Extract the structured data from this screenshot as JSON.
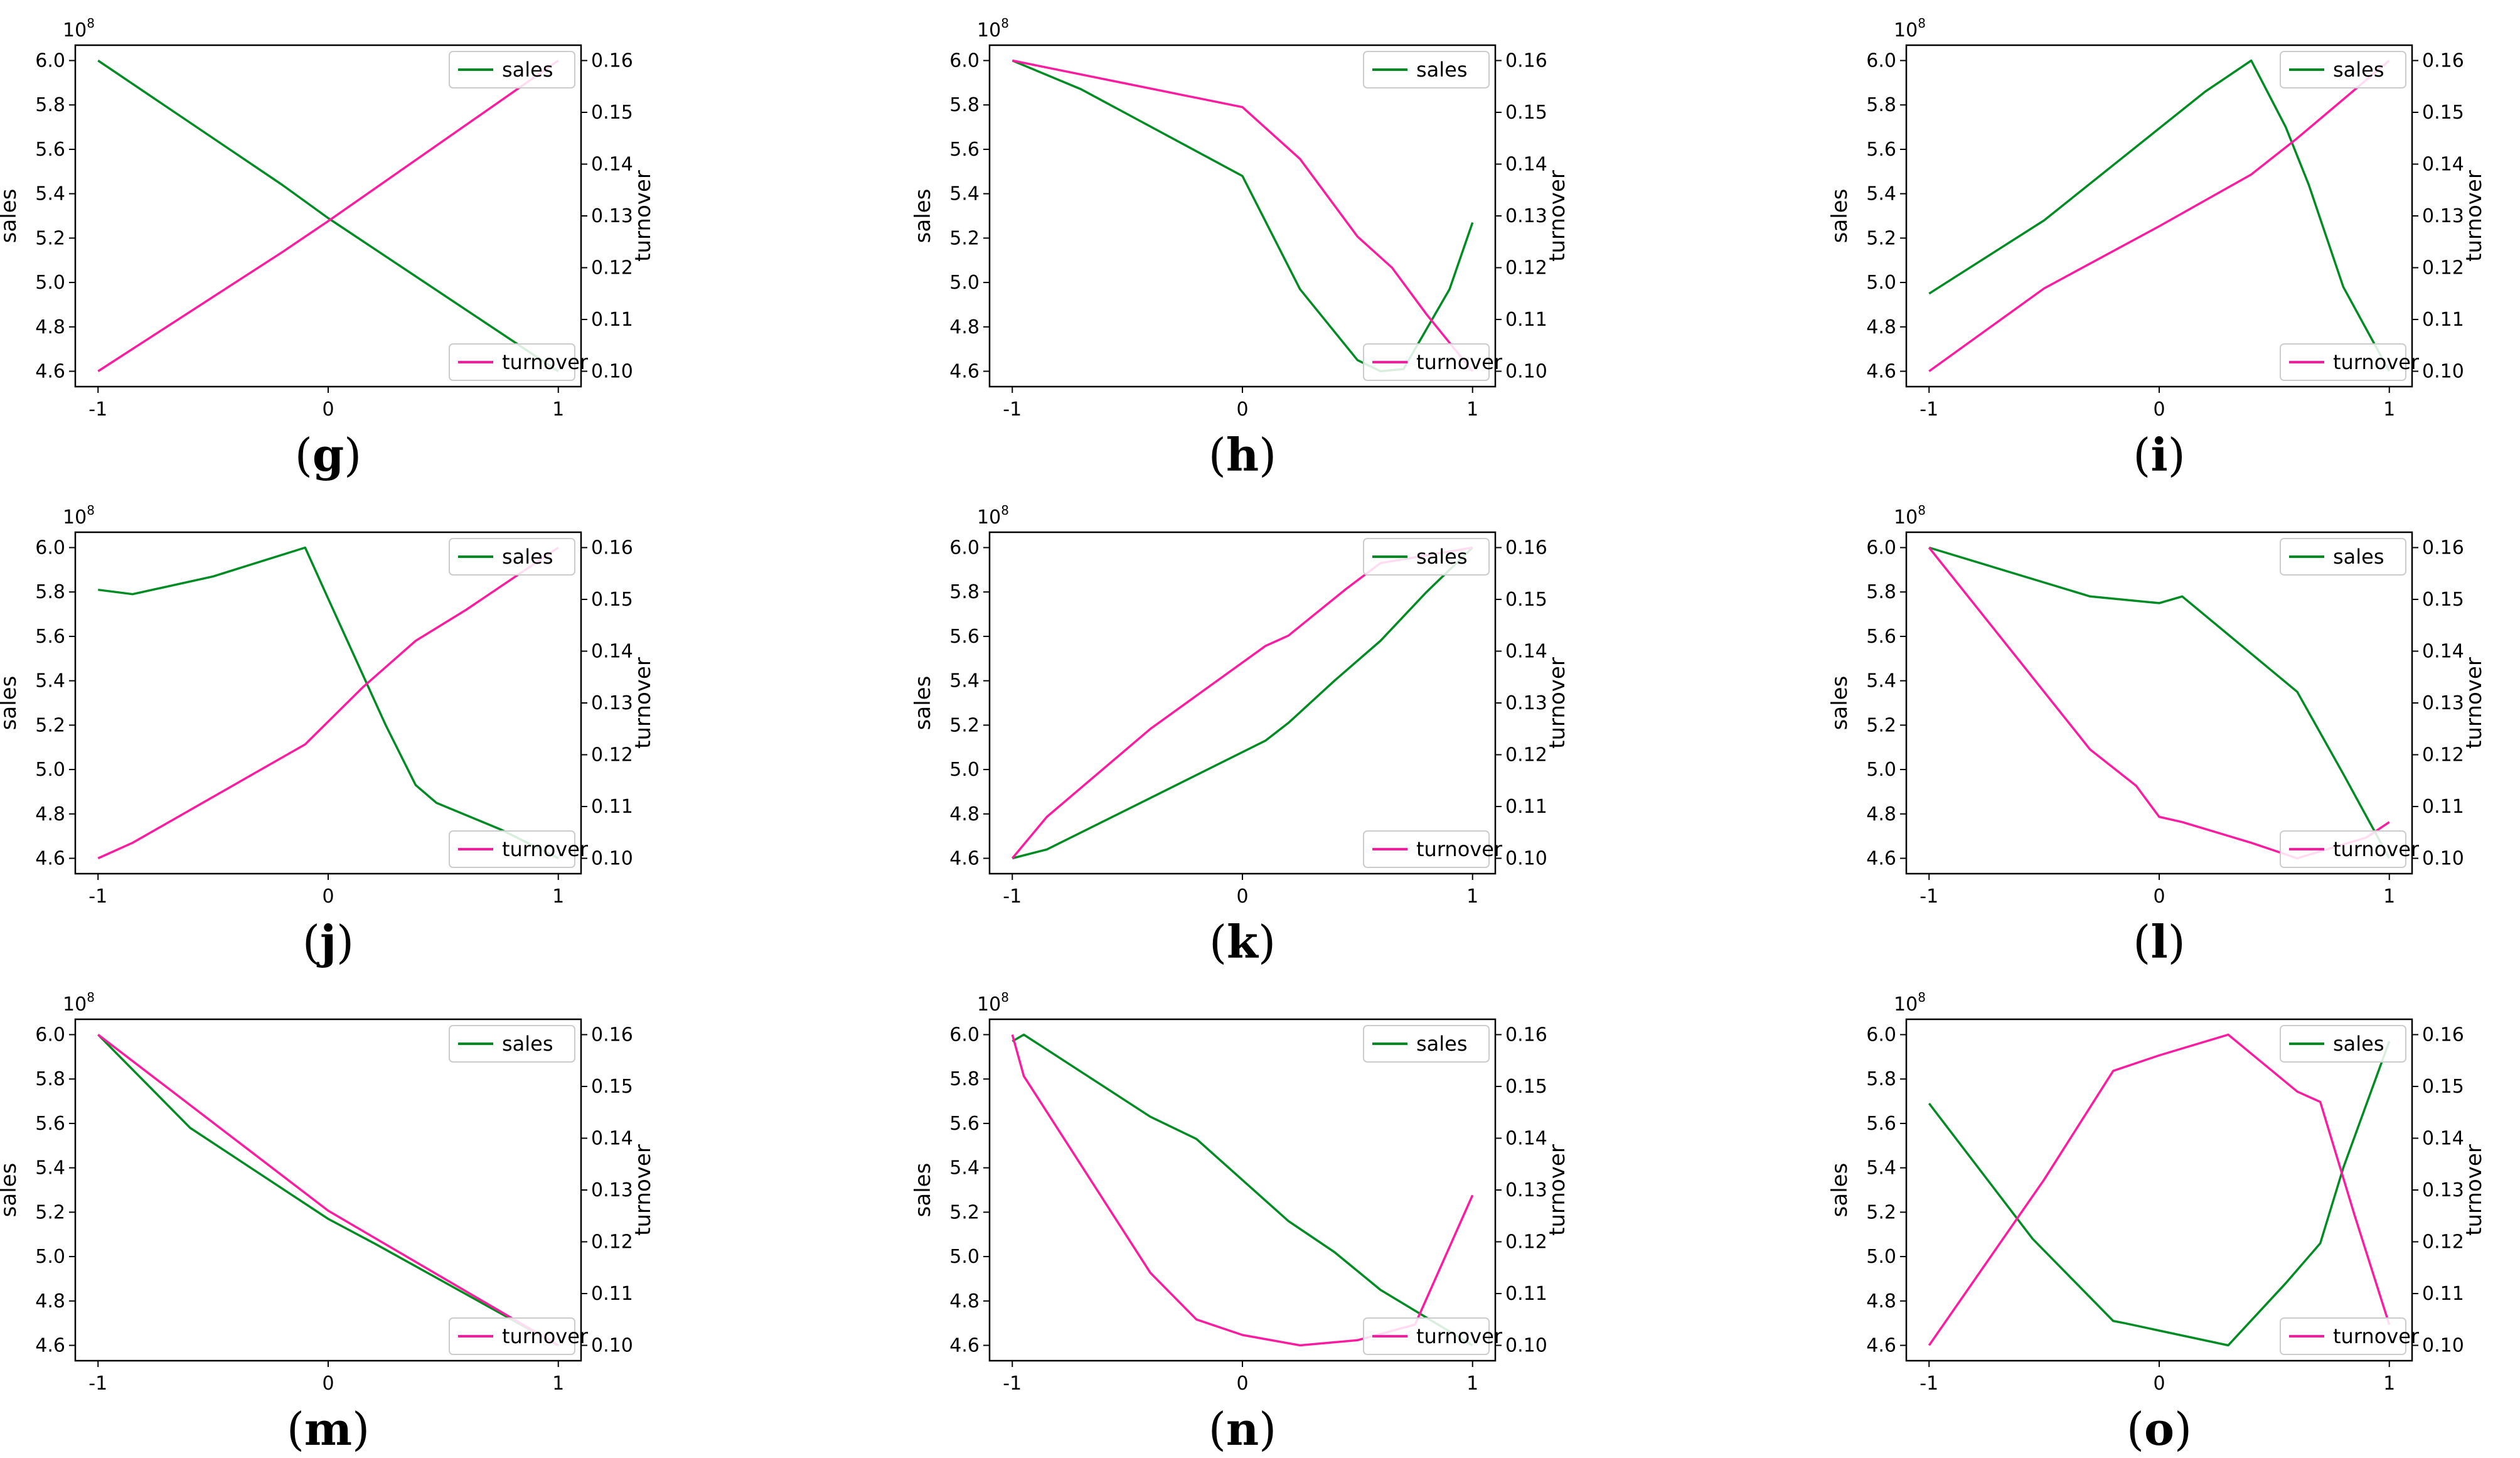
{
  "chart_data": [
    {
      "label": "g",
      "type": "line",
      "x": [
        -1,
        0,
        1
      ],
      "xticks": [
        "-1",
        "0",
        "1"
      ],
      "ylim_left": [
        4.6,
        6.0
      ],
      "ylim_right": [
        0.1,
        0.16
      ],
      "yticks_left": [
        "4.6",
        "4.8",
        "5.0",
        "5.2",
        "5.4",
        "5.6",
        "5.8",
        "6.0"
      ],
      "yticks_right": [
        "0.10",
        "0.11",
        "0.12",
        "0.13",
        "0.14",
        "0.15",
        "0.16"
      ],
      "ylabel_left": "sales",
      "ylabel_right": "turnover",
      "exponent": "10^8",
      "legend": {
        "sales": "upper right",
        "turnover": "lower right"
      },
      "series": [
        {
          "name": "sales",
          "axis": "left",
          "color": "#008c23",
          "points": [
            [
              -1,
              6.0
            ],
            [
              -0.2,
              5.44
            ],
            [
              0,
              5.29
            ],
            [
              1,
              4.6
            ]
          ]
        },
        {
          "name": "turnover",
          "axis": "right",
          "color": "#ff1aa0",
          "points": [
            [
              -1,
              0.1
            ],
            [
              -0.2,
              0.123
            ],
            [
              0,
              0.129
            ],
            [
              1,
              0.16
            ]
          ]
        }
      ]
    },
    {
      "label": "h",
      "type": "line",
      "x": [
        -1,
        0,
        1
      ],
      "xticks": [
        "-1",
        "0",
        "1"
      ],
      "ylim_left": [
        4.6,
        6.0
      ],
      "ylim_right": [
        0.1,
        0.16
      ],
      "yticks_left": [
        "4.6",
        "4.8",
        "5.0",
        "5.2",
        "5.4",
        "5.6",
        "5.8",
        "6.0"
      ],
      "yticks_right": [
        "0.10",
        "0.11",
        "0.12",
        "0.13",
        "0.14",
        "0.15",
        "0.16"
      ],
      "ylabel_left": "sales",
      "ylabel_right": "turnover",
      "exponent": "10^8",
      "legend": {
        "sales": "upper right",
        "turnover": "lower right"
      },
      "series": [
        {
          "name": "sales",
          "axis": "left",
          "color": "#008c23",
          "points": [
            [
              -1,
              6.0
            ],
            [
              -0.7,
              5.87
            ],
            [
              0,
              5.48
            ],
            [
              0.25,
              4.97
            ],
            [
              0.5,
              4.65
            ],
            [
              0.6,
              4.6
            ],
            [
              0.7,
              4.61
            ],
            [
              0.9,
              4.97
            ],
            [
              1,
              5.27
            ]
          ]
        },
        {
          "name": "turnover",
          "axis": "right",
          "color": "#ff1aa0",
          "points": [
            [
              -1,
              0.16
            ],
            [
              0,
              0.151
            ],
            [
              0.25,
              0.141
            ],
            [
              0.5,
              0.126
            ],
            [
              0.65,
              0.12
            ],
            [
              0.8,
              0.111
            ],
            [
              1,
              0.1
            ]
          ]
        }
      ]
    },
    {
      "label": "i",
      "type": "line",
      "x": [
        -1,
        0,
        1
      ],
      "xticks": [
        "-1",
        "0",
        "1"
      ],
      "ylim_left": [
        4.6,
        6.0
      ],
      "ylim_right": [
        0.1,
        0.16
      ],
      "yticks_left": [
        "4.6",
        "4.8",
        "5.0",
        "5.2",
        "5.4",
        "5.6",
        "5.8",
        "6.0"
      ],
      "yticks_right": [
        "0.10",
        "0.11",
        "0.12",
        "0.13",
        "0.14",
        "0.15",
        "0.16"
      ],
      "ylabel_left": "sales",
      "ylabel_right": "turnover",
      "exponent": "10^8",
      "legend": {
        "sales": "upper right",
        "turnover": "lower right"
      },
      "series": [
        {
          "name": "sales",
          "axis": "left",
          "color": "#008c23",
          "points": [
            [
              -1,
              4.95
            ],
            [
              -0.5,
              5.28
            ],
            [
              0.2,
              5.86
            ],
            [
              0.4,
              6.0
            ],
            [
              0.55,
              5.7
            ],
            [
              0.65,
              5.44
            ],
            [
              0.8,
              4.98
            ],
            [
              1,
              4.6
            ]
          ]
        },
        {
          "name": "turnover",
          "axis": "right",
          "color": "#ff1aa0",
          "points": [
            [
              -1,
              0.1
            ],
            [
              -0.5,
              0.116
            ],
            [
              0,
              0.128
            ],
            [
              0.4,
              0.138
            ],
            [
              0.6,
              0.145
            ],
            [
              1,
              0.16
            ]
          ]
        }
      ]
    },
    {
      "label": "j",
      "type": "line",
      "x": [
        -1,
        0,
        1
      ],
      "xticks": [
        "-1",
        "0",
        "1"
      ],
      "ylim_left": [
        4.6,
        6.0
      ],
      "ylim_right": [
        0.1,
        0.16
      ],
      "yticks_left": [
        "4.6",
        "4.8",
        "5.0",
        "5.2",
        "5.4",
        "5.6",
        "5.8",
        "6.0"
      ],
      "yticks_right": [
        "0.10",
        "0.11",
        "0.12",
        "0.13",
        "0.14",
        "0.15",
        "0.16"
      ],
      "ylabel_left": "sales",
      "ylabel_right": "turnover",
      "exponent": "10^8",
      "legend": {
        "sales": "upper right",
        "turnover": "lower right"
      },
      "series": [
        {
          "name": "sales",
          "axis": "left",
          "color": "#008c23",
          "points": [
            [
              -1,
              5.81
            ],
            [
              -0.85,
              5.79
            ],
            [
              -0.5,
              5.87
            ],
            [
              -0.1,
              6.0
            ],
            [
              0,
              5.77
            ],
            [
              0.25,
              5.2
            ],
            [
              0.38,
              4.93
            ],
            [
              0.47,
              4.85
            ],
            [
              0.75,
              4.73
            ],
            [
              1,
              4.6
            ]
          ]
        },
        {
          "name": "turnover",
          "axis": "right",
          "color": "#ff1aa0",
          "points": [
            [
              -1,
              0.1
            ],
            [
              -0.85,
              0.103
            ],
            [
              -0.1,
              0.122
            ],
            [
              0.15,
              0.133
            ],
            [
              0.38,
              0.142
            ],
            [
              0.6,
              0.148
            ],
            [
              1,
              0.16
            ]
          ]
        }
      ]
    },
    {
      "label": "k",
      "type": "line",
      "x": [
        -1,
        0,
        1
      ],
      "xticks": [
        "-1",
        "0",
        "1"
      ],
      "ylim_left": [
        4.6,
        6.0
      ],
      "ylim_right": [
        0.1,
        0.16
      ],
      "yticks_left": [
        "4.6",
        "4.8",
        "5.0",
        "5.2",
        "5.4",
        "5.6",
        "5.8",
        "6.0"
      ],
      "yticks_right": [
        "0.10",
        "0.11",
        "0.12",
        "0.13",
        "0.14",
        "0.15",
        "0.16"
      ],
      "ylabel_left": "sales",
      "ylabel_right": "turnover",
      "exponent": "10^8",
      "legend": {
        "sales": "upper right",
        "turnover": "lower right"
      },
      "series": [
        {
          "name": "sales",
          "axis": "left",
          "color": "#008c23",
          "points": [
            [
              -1,
              4.6
            ],
            [
              -0.85,
              4.64
            ],
            [
              -0.5,
              4.82
            ],
            [
              0.1,
              5.13
            ],
            [
              0.2,
              5.21
            ],
            [
              0.4,
              5.4
            ],
            [
              0.6,
              5.58
            ],
            [
              0.8,
              5.8
            ],
            [
              1,
              6.0
            ]
          ]
        },
        {
          "name": "turnover",
          "axis": "right",
          "color": "#ff1aa0",
          "points": [
            [
              -1,
              0.1
            ],
            [
              -0.85,
              0.108
            ],
            [
              -0.4,
              0.125
            ],
            [
              0.1,
              0.141
            ],
            [
              0.2,
              0.143
            ],
            [
              0.45,
              0.152
            ],
            [
              0.6,
              0.157
            ],
            [
              1,
              0.16
            ]
          ]
        }
      ]
    },
    {
      "label": "l",
      "type": "line",
      "x": [
        -1,
        0,
        1
      ],
      "xticks": [
        "-1",
        "0",
        "1"
      ],
      "ylim_left": [
        4.6,
        6.0
      ],
      "ylim_right": [
        0.1,
        0.16
      ],
      "yticks_left": [
        "4.6",
        "4.8",
        "5.0",
        "5.2",
        "5.4",
        "5.6",
        "5.8",
        "6.0"
      ],
      "yticks_right": [
        "0.10",
        "0.11",
        "0.12",
        "0.13",
        "0.14",
        "0.15",
        "0.16"
      ],
      "ylabel_left": "sales",
      "ylabel_right": "turnover",
      "exponent": "10^8",
      "legend": {
        "sales": "upper right",
        "turnover": "lower right"
      },
      "series": [
        {
          "name": "sales",
          "axis": "left",
          "color": "#008c23",
          "points": [
            [
              -1,
              6.0
            ],
            [
              -0.3,
              5.78
            ],
            [
              0,
              5.75
            ],
            [
              0.1,
              5.78
            ],
            [
              0.6,
              5.35
            ],
            [
              0.8,
              4.98
            ],
            [
              1,
              4.6
            ]
          ]
        },
        {
          "name": "turnover",
          "axis": "right",
          "color": "#ff1aa0",
          "points": [
            [
              -1,
              0.16
            ],
            [
              -0.3,
              0.121
            ],
            [
              -0.1,
              0.114
            ],
            [
              0,
              0.108
            ],
            [
              0.1,
              0.107
            ],
            [
              0.4,
              0.103
            ],
            [
              0.6,
              0.1
            ],
            [
              0.75,
              0.102
            ],
            [
              0.9,
              0.104
            ],
            [
              1,
              0.107
            ]
          ]
        }
      ]
    },
    {
      "label": "m",
      "type": "line",
      "x": [
        -1,
        0,
        1
      ],
      "xticks": [
        "-1",
        "0",
        "1"
      ],
      "ylim_left": [
        4.6,
        6.0
      ],
      "ylim_right": [
        0.1,
        0.16
      ],
      "yticks_left": [
        "4.6",
        "4.8",
        "5.0",
        "5.2",
        "5.4",
        "5.6",
        "5.8",
        "6.0"
      ],
      "yticks_right": [
        "0.10",
        "0.11",
        "0.12",
        "0.13",
        "0.14",
        "0.15",
        "0.16"
      ],
      "ylabel_left": "sales",
      "ylabel_right": "turnover",
      "exponent": "10^8",
      "legend": {
        "sales": "upper right",
        "turnover": "lower right"
      },
      "series": [
        {
          "name": "sales",
          "axis": "left",
          "color": "#008c23",
          "points": [
            [
              -1,
              6.0
            ],
            [
              -0.6,
              5.58
            ],
            [
              0,
              5.17
            ],
            [
              0.2,
              5.06
            ],
            [
              1,
              4.6
            ]
          ]
        },
        {
          "name": "turnover",
          "axis": "right",
          "color": "#ff1aa0",
          "points": [
            [
              -1,
              0.16
            ],
            [
              0,
              0.126
            ],
            [
              1,
              0.1
            ]
          ]
        }
      ]
    },
    {
      "label": "n",
      "type": "line",
      "x": [
        -1,
        0,
        1
      ],
      "xticks": [
        "-1",
        "0",
        "1"
      ],
      "ylim_left": [
        4.6,
        6.0
      ],
      "ylim_right": [
        0.1,
        0.16
      ],
      "yticks_left": [
        "4.6",
        "4.8",
        "5.0",
        "5.2",
        "5.4",
        "5.6",
        "5.8",
        "6.0"
      ],
      "yticks_right": [
        "0.10",
        "0.11",
        "0.12",
        "0.13",
        "0.14",
        "0.15",
        "0.16"
      ],
      "ylabel_left": "sales",
      "ylabel_right": "turnover",
      "exponent": "10^8",
      "legend": {
        "sales": "upper right",
        "turnover": "lower right"
      },
      "series": [
        {
          "name": "sales",
          "axis": "left",
          "color": "#008c23",
          "points": [
            [
              -1,
              5.97
            ],
            [
              -0.95,
              6.0
            ],
            [
              -0.4,
              5.63
            ],
            [
              -0.2,
              5.53
            ],
            [
              0.2,
              5.16
            ],
            [
              0.4,
              5.02
            ],
            [
              0.6,
              4.85
            ],
            [
              1,
              4.6
            ]
          ]
        },
        {
          "name": "turnover",
          "axis": "right",
          "color": "#ff1aa0",
          "points": [
            [
              -1,
              0.16
            ],
            [
              -0.95,
              0.152
            ],
            [
              -0.4,
              0.114
            ],
            [
              -0.2,
              0.105
            ],
            [
              0,
              0.102
            ],
            [
              0.25,
              0.1
            ],
            [
              0.5,
              0.101
            ],
            [
              0.75,
              0.104
            ],
            [
              1,
              0.129
            ]
          ]
        }
      ]
    },
    {
      "label": "o",
      "type": "line",
      "x": [
        -1,
        0,
        1
      ],
      "xticks": [
        "-1",
        "0",
        "1"
      ],
      "ylim_left": [
        4.6,
        6.0
      ],
      "ylim_right": [
        0.1,
        0.16
      ],
      "yticks_left": [
        "4.6",
        "4.8",
        "5.0",
        "5.2",
        "5.4",
        "5.6",
        "5.8",
        "6.0"
      ],
      "yticks_right": [
        "0.10",
        "0.11",
        "0.12",
        "0.13",
        "0.14",
        "0.15",
        "0.16"
      ],
      "ylabel_left": "sales",
      "ylabel_right": "turnover",
      "exponent": "10^8",
      "legend": {
        "sales": "upper right",
        "turnover": "lower right"
      },
      "series": [
        {
          "name": "sales",
          "axis": "left",
          "color": "#008c23",
          "points": [
            [
              -1,
              5.69
            ],
            [
              -0.55,
              5.08
            ],
            [
              -0.2,
              4.71
            ],
            [
              -0.15,
              4.7
            ],
            [
              0.3,
              4.6
            ],
            [
              0.55,
              4.88
            ],
            [
              0.7,
              5.06
            ],
            [
              0.8,
              5.4
            ],
            [
              1,
              5.97
            ]
          ]
        },
        {
          "name": "turnover",
          "axis": "right",
          "color": "#ff1aa0",
          "points": [
            [
              -1,
              0.1
            ],
            [
              -0.5,
              0.132
            ],
            [
              -0.2,
              0.153
            ],
            [
              0,
              0.156
            ],
            [
              0.3,
              0.16
            ],
            [
              0.6,
              0.149
            ],
            [
              0.7,
              0.147
            ],
            [
              0.85,
              0.125
            ],
            [
              1,
              0.104
            ]
          ]
        }
      ]
    }
  ]
}
